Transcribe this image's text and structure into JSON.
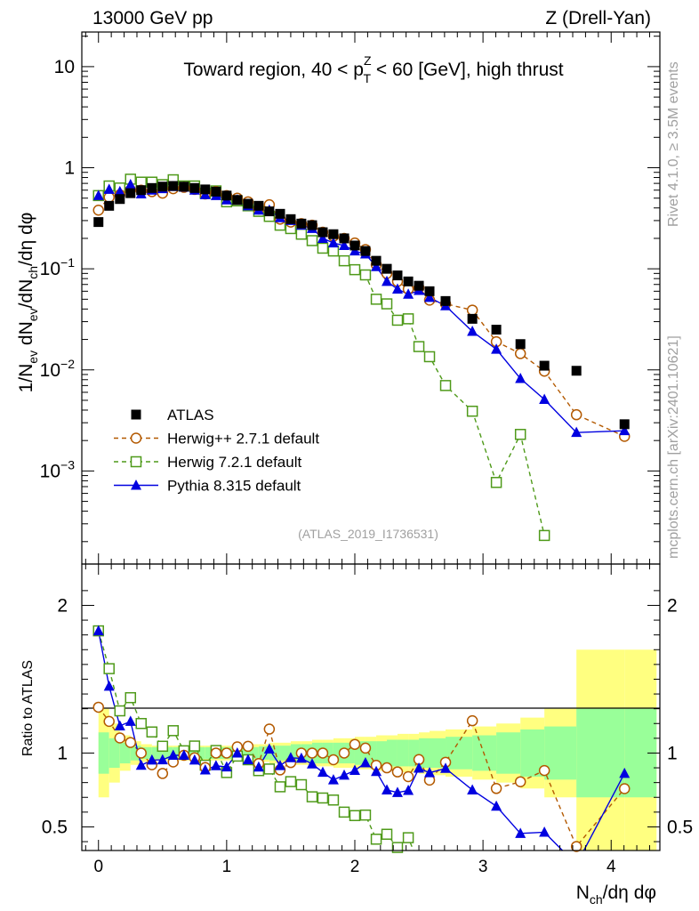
{
  "header": {
    "left": "13000 GeV pp",
    "right": "Z (Drell-Yan)",
    "subtitle_pre": "Toward region, 40 < p",
    "subtitle_sup": "Z",
    "subtitle_sub": "T",
    "subtitle_post": " < 60 [GeV], high thrust",
    "analysis_id": "(ATLAS_2019_I1736531)",
    "side_rivet": "Rivet 4.1.0, ≥ 3.5M events",
    "side_mcplots": "mcplots.cern.ch [arXiv:2401.10621]"
  },
  "axes": {
    "main_ylabel": "1/N_ev dN_ev/dN_ch/dη dφ",
    "ratio_ylabel": "Ratio to ATLAS",
    "xlabel": "N_ch/dη dφ"
  },
  "colors": {
    "atlas": "#000000",
    "herwigpp": "#b35900",
    "herwig7": "#4f9a1a",
    "pythia": "#0000e0",
    "band_inner": "#99ff99",
    "band_outer": "#ffff80"
  },
  "chart_data": {
    "type": "scatter",
    "title": "Toward region, 40 < pT(Z) < 60 [GeV], high thrust",
    "x_range": [
      -0.13,
      4.38
    ],
    "y_range_log": [
      0.00012,
      22
    ],
    "ratio_range": [
      0.34,
      2.28
    ],
    "x_ticks": [
      0,
      1,
      2,
      3,
      4
    ],
    "x_tick_labels": [
      "0",
      "1",
      "2",
      "3",
      "4"
    ],
    "y_ticks": [
      0.001,
      0.01,
      0.1,
      1,
      10
    ],
    "y_tick_labels": [
      "10^-3",
      "10^-2",
      "10^-1",
      "1",
      "10"
    ],
    "ratio_ticks": [
      0.5,
      1,
      2
    ],
    "ratio_tick_labels": [
      "0.5",
      "1",
      "2"
    ],
    "legend": [
      {
        "name": "ATLAS",
        "key": "atlas"
      },
      {
        "name": "Herwig++ 2.7.1 default",
        "key": "herwigpp"
      },
      {
        "name": "Herwig 7.2.1 default",
        "key": "herwig7"
      },
      {
        "name": "Pythia 8.315 default",
        "key": "pythia"
      }
    ],
    "atlas": {
      "x": [
        0,
        0.083,
        0.167,
        0.25,
        0.333,
        0.417,
        0.5,
        0.583,
        0.667,
        0.75,
        0.833,
        0.917,
        1.0,
        1.083,
        1.167,
        1.25,
        1.333,
        1.417,
        1.5,
        1.583,
        1.667,
        1.75,
        1.833,
        1.917,
        2.0,
        2.083,
        2.167,
        2.25,
        2.333,
        2.417,
        2.5,
        2.583,
        2.708,
        2.917,
        3.104,
        3.292,
        3.479,
        3.729,
        4.104
      ],
      "y": [
        0.29,
        0.42,
        0.49,
        0.56,
        0.6,
        0.63,
        0.65,
        0.66,
        0.65,
        0.63,
        0.61,
        0.58,
        0.53,
        0.48,
        0.44,
        0.42,
        0.37,
        0.35,
        0.31,
        0.28,
        0.27,
        0.23,
        0.22,
        0.2,
        0.17,
        0.15,
        0.12,
        0.1,
        0.086,
        0.075,
        0.068,
        0.06,
        0.048,
        0.032,
        0.025,
        0.018,
        0.011,
        0.0098,
        0.0029
      ]
    },
    "herwigpp": {
      "x": [
        0,
        0.083,
        0.167,
        0.25,
        0.333,
        0.417,
        0.5,
        0.583,
        0.667,
        0.75,
        0.833,
        0.917,
        1.0,
        1.083,
        1.167,
        1.25,
        1.333,
        1.417,
        1.5,
        1.583,
        1.667,
        1.75,
        1.833,
        1.917,
        2.0,
        2.083,
        2.167,
        2.25,
        2.333,
        2.417,
        2.5,
        2.583,
        2.708,
        2.917,
        3.104,
        3.292,
        3.479,
        3.729,
        4.104
      ],
      "y": [
        0.38,
        0.51,
        0.54,
        0.6,
        0.6,
        0.58,
        0.56,
        0.62,
        0.64,
        0.61,
        0.55,
        0.58,
        0.53,
        0.5,
        0.46,
        0.39,
        0.43,
        0.31,
        0.29,
        0.28,
        0.27,
        0.23,
        0.21,
        0.2,
        0.18,
        0.155,
        0.11,
        0.09,
        0.075,
        0.063,
        0.065,
        0.049,
        0.045,
        0.039,
        0.019,
        0.0145,
        0.0097,
        0.0036,
        0.0022
      ]
    },
    "herwig7": {
      "x": [
        0,
        0.083,
        0.167,
        0.25,
        0.333,
        0.417,
        0.5,
        0.583,
        0.667,
        0.75,
        0.833,
        0.917,
        1.0,
        1.083,
        1.167,
        1.25,
        1.333,
        1.417,
        1.5,
        1.583,
        1.667,
        1.75,
        1.833,
        1.917,
        2.0,
        2.083,
        2.167,
        2.25,
        2.333,
        2.417,
        2.5,
        2.583,
        2.708,
        2.917,
        3.104,
        3.292,
        3.479
      ],
      "y": [
        0.53,
        0.66,
        0.63,
        0.77,
        0.72,
        0.72,
        0.68,
        0.76,
        0.66,
        0.66,
        0.56,
        0.59,
        0.46,
        0.47,
        0.42,
        0.37,
        0.33,
        0.27,
        0.25,
        0.22,
        0.19,
        0.16,
        0.15,
        0.12,
        0.098,
        0.087,
        0.05,
        0.045,
        0.031,
        0.032,
        0.017,
        0.0135,
        0.007,
        0.0039,
        0.00077,
        0.0023,
        0.00023
      ]
    },
    "pythia": {
      "x": [
        0,
        0.083,
        0.167,
        0.25,
        0.333,
        0.417,
        0.5,
        0.583,
        0.667,
        0.75,
        0.833,
        0.917,
        1.0,
        1.083,
        1.167,
        1.25,
        1.333,
        1.417,
        1.5,
        1.583,
        1.667,
        1.75,
        1.833,
        1.917,
        2.0,
        2.083,
        2.167,
        2.25,
        2.333,
        2.417,
        2.5,
        2.583,
        2.708,
        2.917,
        3.104,
        3.292,
        3.479,
        3.729,
        4.104
      ],
      "y": [
        0.53,
        0.61,
        0.58,
        0.68,
        0.55,
        0.6,
        0.62,
        0.65,
        0.64,
        0.6,
        0.54,
        0.53,
        0.48,
        0.48,
        0.42,
        0.38,
        0.38,
        0.32,
        0.3,
        0.27,
        0.25,
        0.2,
        0.18,
        0.17,
        0.15,
        0.14,
        0.105,
        0.075,
        0.063,
        0.056,
        0.061,
        0.052,
        0.043,
        0.024,
        0.016,
        0.0082,
        0.0051,
        0.0024,
        0.0025
      ]
    },
    "band": {
      "edges": [
        0,
        0.083,
        0.167,
        0.25,
        0.333,
        0.417,
        0.5,
        0.583,
        0.667,
        0.75,
        0.833,
        0.917,
        1.0,
        1.083,
        1.167,
        1.25,
        1.333,
        1.417,
        1.5,
        1.583,
        1.667,
        1.75,
        1.833,
        1.917,
        2.0,
        2.083,
        2.167,
        2.25,
        2.333,
        2.417,
        2.5,
        2.583,
        2.708,
        2.917,
        3.104,
        3.292,
        3.479,
        3.729,
        4.104,
        4.354
      ],
      "inner": [
        0.14,
        0.1,
        0.07,
        0.05,
        0.04,
        0.04,
        0.04,
        0.04,
        0.04,
        0.04,
        0.04,
        0.04,
        0.04,
        0.04,
        0.04,
        0.045,
        0.05,
        0.05,
        0.06,
        0.06,
        0.07,
        0.07,
        0.07,
        0.07,
        0.08,
        0.08,
        0.08,
        0.09,
        0.09,
        0.09,
        0.1,
        0.1,
        0.11,
        0.12,
        0.14,
        0.16,
        0.18,
        0.3,
        0.3
      ],
      "outer": [
        0.3,
        0.2,
        0.12,
        0.08,
        0.06,
        0.05,
        0.05,
        0.05,
        0.05,
        0.05,
        0.05,
        0.05,
        0.05,
        0.05,
        0.06,
        0.06,
        0.07,
        0.07,
        0.08,
        0.08,
        0.09,
        0.09,
        0.1,
        0.1,
        0.11,
        0.11,
        0.12,
        0.12,
        0.13,
        0.13,
        0.14,
        0.15,
        0.16,
        0.18,
        0.2,
        0.24,
        0.3,
        0.7,
        0.7
      ]
    }
  }
}
